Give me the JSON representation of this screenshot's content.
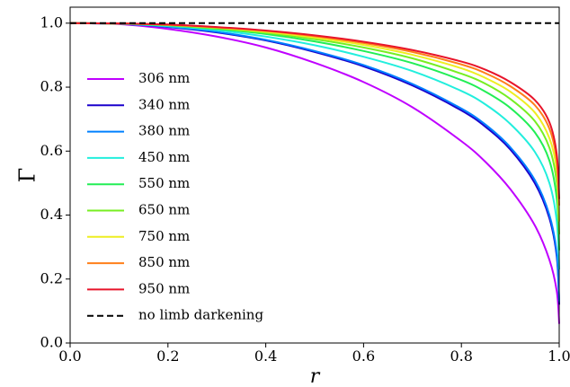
{
  "chart_data": {
    "type": "line",
    "title": "",
    "xlabel": "r",
    "ylabel": "Γ",
    "xlim": [
      0.0,
      1.0
    ],
    "ylim": [
      0.0,
      1.05
    ],
    "x_ticks": [
      "0.0",
      "0.2",
      "0.4",
      "0.6",
      "0.8",
      "1.0"
    ],
    "y_ticks": [
      "0.0",
      "0.2",
      "0.4",
      "0.6",
      "0.8",
      "1.0"
    ],
    "grid": false,
    "legend_position": "left",
    "x": [
      0.0,
      0.1,
      0.2,
      0.3,
      0.4,
      0.5,
      0.6,
      0.7,
      0.8,
      0.85,
      0.9,
      0.95,
      0.98,
      0.995,
      1.0
    ],
    "series": [
      {
        "name": "306 nm",
        "color": "#bf00ff",
        "values": [
          1.0,
          0.997,
          0.982,
          0.958,
          0.924,
          0.876,
          0.816,
          0.737,
          0.631,
          0.565,
          0.481,
          0.368,
          0.26,
          0.162,
          0.06
        ]
      },
      {
        "name": "340 nm",
        "color": "#1a00cc",
        "values": [
          1.0,
          0.998,
          0.988,
          0.971,
          0.946,
          0.91,
          0.865,
          0.805,
          0.727,
          0.675,
          0.605,
          0.5,
          0.39,
          0.27,
          0.12
        ]
      },
      {
        "name": "380 nm",
        "color": "#0080ff",
        "values": [
          1.0,
          0.998,
          0.989,
          0.973,
          0.948,
          0.913,
          0.869,
          0.81,
          0.733,
          0.682,
          0.612,
          0.51,
          0.4,
          0.28,
          0.13
        ]
      },
      {
        "name": "450 nm",
        "color": "#22eedd",
        "values": [
          1.0,
          0.998,
          0.991,
          0.978,
          0.958,
          0.931,
          0.895,
          0.85,
          0.788,
          0.745,
          0.685,
          0.598,
          0.5,
          0.38,
          0.23
        ]
      },
      {
        "name": "550 nm",
        "color": "#22ee55",
        "values": [
          1.0,
          0.999,
          0.993,
          0.982,
          0.966,
          0.943,
          0.913,
          0.875,
          0.822,
          0.785,
          0.735,
          0.659,
          0.57,
          0.45,
          0.29
        ]
      },
      {
        "name": "650 nm",
        "color": "#77ee22",
        "values": [
          1.0,
          0.999,
          0.994,
          0.984,
          0.97,
          0.95,
          0.924,
          0.89,
          0.842,
          0.81,
          0.763,
          0.694,
          0.61,
          0.5,
          0.34
        ]
      },
      {
        "name": "750 nm",
        "color": "#eeee22",
        "values": [
          1.0,
          0.999,
          0.995,
          0.986,
          0.973,
          0.955,
          0.932,
          0.901,
          0.859,
          0.828,
          0.786,
          0.721,
          0.64,
          0.54,
          0.38
        ]
      },
      {
        "name": "850 nm",
        "color": "#ff7f1a",
        "values": [
          1.0,
          0.999,
          0.995,
          0.987,
          0.976,
          0.959,
          0.938,
          0.91,
          0.871,
          0.843,
          0.803,
          0.744,
          0.67,
          0.57,
          0.43
        ]
      },
      {
        "name": "950 nm",
        "color": "#e8142a",
        "values": [
          1.0,
          0.999,
          0.996,
          0.988,
          0.977,
          0.962,
          0.942,
          0.916,
          0.88,
          0.854,
          0.816,
          0.76,
          0.69,
          0.59,
          0.45
        ]
      },
      {
        "name": "no limb darkening",
        "color": "#000000",
        "dashed": true,
        "values": [
          1.0,
          1.0,
          1.0,
          1.0,
          1.0,
          1.0,
          1.0,
          1.0,
          1.0,
          1.0,
          1.0,
          1.0,
          1.0,
          1.0,
          1.0
        ]
      }
    ]
  }
}
